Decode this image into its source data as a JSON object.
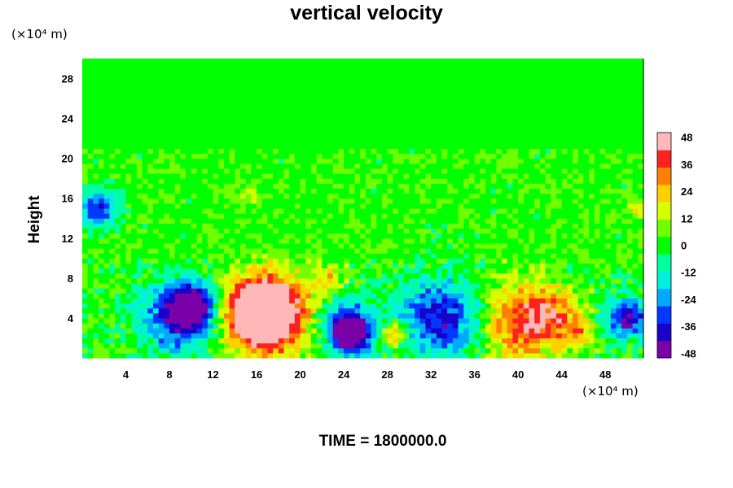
{
  "chart_data": {
    "type": "heatmap",
    "title": "vertical velocity",
    "ylabel": "Height",
    "y_unit": "(×10⁴ m)",
    "x_unit": "(×10⁴ m)",
    "footer": "TIME = 1800000.0",
    "xlim": [
      0,
      51.5
    ],
    "ylim": [
      0,
      30
    ],
    "x_ticks": [
      4,
      8,
      12,
      16,
      20,
      24,
      28,
      32,
      36,
      40,
      44,
      48
    ],
    "y_ticks": [
      4,
      8,
      12,
      16,
      20,
      24,
      28
    ],
    "colorbar": {
      "range": [
        -50,
        50
      ],
      "ticks": [
        48,
        36,
        24,
        12,
        0,
        -12,
        -24,
        -36,
        -48
      ],
      "colors": [
        "#7a00a8",
        "#1a00c8",
        "#0038ff",
        "#00a8ff",
        "#00f0e0",
        "#00ffa0",
        "#00ff00",
        "#70ff00",
        "#d8ff00",
        "#ffd000",
        "#ff8000",
        "#ff2020",
        "#ffb8b8"
      ]
    },
    "background_value": 2,
    "features": [
      {
        "x": 1.5,
        "y": 15,
        "r": 1.5,
        "value": -36
      },
      {
        "x": 9,
        "y": 4,
        "r": 3.2,
        "value": -38
      },
      {
        "x": 10,
        "y": 5.5,
        "r": 1.8,
        "value": -44
      },
      {
        "x": 17,
        "y": 4,
        "r": 3.8,
        "value": 48
      },
      {
        "x": 16.5,
        "y": 5,
        "r": 2.5,
        "value": 52
      },
      {
        "x": 24.5,
        "y": 3,
        "r": 2.6,
        "value": -38
      },
      {
        "x": 24.5,
        "y": 2.5,
        "r": 1.3,
        "value": -50
      },
      {
        "x": 28.5,
        "y": 2.5,
        "r": 1.3,
        "value": 34
      },
      {
        "x": 33,
        "y": 4,
        "r": 3.5,
        "value": -40
      },
      {
        "x": 40,
        "y": 3.5,
        "r": 3.5,
        "value": 34
      },
      {
        "x": 43,
        "y": 4.5,
        "r": 2.5,
        "value": 24
      },
      {
        "x": 45.5,
        "y": 2.5,
        "r": 1.3,
        "value": 22
      },
      {
        "x": 50,
        "y": 4,
        "r": 1.8,
        "value": -42
      },
      {
        "x": 22.5,
        "y": 8,
        "r": 1.2,
        "value": 20
      },
      {
        "x": 15.5,
        "y": 16.5,
        "r": 1.2,
        "value": 10
      },
      {
        "x": 51,
        "y": 15,
        "r": 1,
        "value": 16
      }
    ]
  }
}
